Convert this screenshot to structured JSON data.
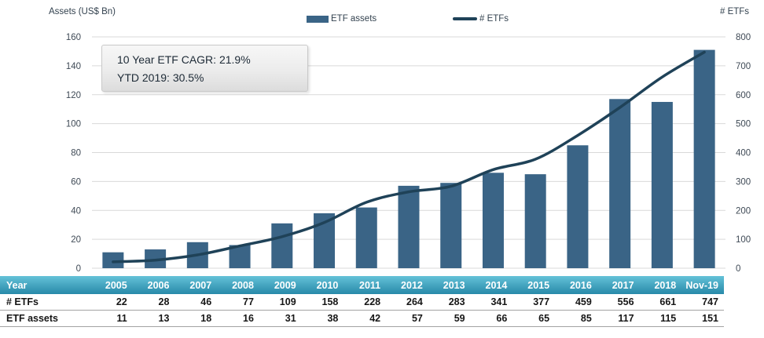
{
  "titles": {
    "left_axis": "Assets (US$ Bn)",
    "right_axis": "# ETFs"
  },
  "legend": {
    "bar_label": "ETF assets",
    "line_label": "# ETFs"
  },
  "annotation": {
    "line1": "10 Year ETF CAGR: 21.9%",
    "line2": "YTD 2019: 30.5%"
  },
  "colors": {
    "bar": "#3a6486",
    "line": "#1f4258",
    "grid": "#d9d9d9",
    "tick_text": "#3f4a56",
    "title_text": "#33424f",
    "annotation_text": "#1d2a36",
    "table_header_top": "#64c2d8",
    "table_header_bottom": "#2789a9",
    "table_header_text": "#ffffff",
    "table_border": "#a3a3a3",
    "table_text": "#161616"
  },
  "chart_data": {
    "type": "bar+line combo",
    "categories": [
      "2005",
      "2006",
      "2007",
      "2008",
      "2009",
      "2010",
      "2011",
      "2012",
      "2013",
      "2014",
      "2015",
      "2016",
      "2017",
      "2018",
      "Nov-19"
    ],
    "series": [
      {
        "name": "ETF assets",
        "type": "bar",
        "axis": "left",
        "values": [
          11,
          13,
          18,
          16,
          31,
          38,
          42,
          57,
          59,
          66,
          65,
          85,
          117,
          115,
          151
        ]
      },
      {
        "name": "# ETFs",
        "type": "line",
        "axis": "right",
        "values": [
          22,
          28,
          46,
          77,
          109,
          158,
          228,
          264,
          283,
          341,
          377,
          459,
          556,
          661,
          747
        ]
      }
    ],
    "left_axis": {
      "title": "Assets (US$ Bn)",
      "min": 0,
      "max": 160,
      "step": 20,
      "ticks": [
        0,
        20,
        40,
        60,
        80,
        100,
        120,
        140,
        160
      ]
    },
    "right_axis": {
      "title": "# ETFs",
      "min": 0,
      "max": 800,
      "step": 100,
      "ticks": [
        0,
        100,
        200,
        300,
        400,
        500,
        600,
        700,
        800
      ]
    },
    "grid": "horizontal-only",
    "legend_position": "top-center",
    "annotations": [
      "10 Year ETF CAGR: 21.9%",
      "YTD 2019: 30.5%"
    ]
  },
  "table": {
    "header_label": "Year",
    "years": [
      "2005",
      "2006",
      "2007",
      "2008",
      "2009",
      "2010",
      "2011",
      "2012",
      "2013",
      "2014",
      "2015",
      "2016",
      "2017",
      "2018",
      "Nov-19"
    ],
    "rows": [
      {
        "label": "# ETFs",
        "values": [
          "22",
          "28",
          "46",
          "77",
          "109",
          "158",
          "228",
          "264",
          "283",
          "341",
          "377",
          "459",
          "556",
          "661",
          "747"
        ]
      },
      {
        "label": "ETF assets",
        "values": [
          "11",
          "13",
          "18",
          "16",
          "31",
          "38",
          "42",
          "57",
          "59",
          "66",
          "65",
          "85",
          "117",
          "115",
          "151"
        ]
      }
    ]
  }
}
